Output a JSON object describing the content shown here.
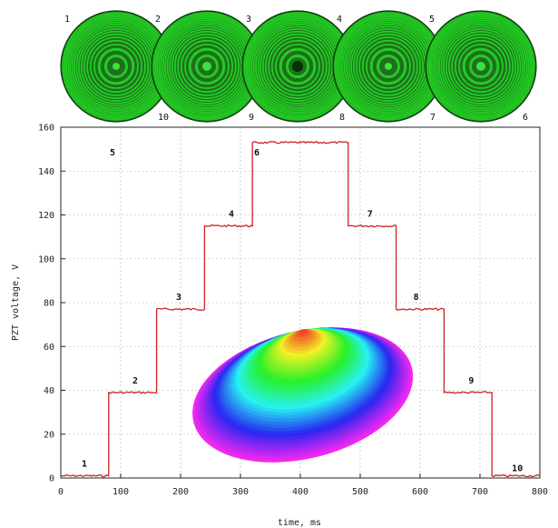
{
  "chart_data": {
    "type": "line",
    "title": "",
    "xlabel": "time, ms",
    "ylabel": "PZT voltage, V",
    "xlim": [
      0,
      800
    ],
    "ylim": [
      0,
      160
    ],
    "x_ticks": [
      "0",
      "100",
      "200",
      "300",
      "400",
      "500",
      "600",
      "700",
      "800"
    ],
    "y_ticks": [
      "0",
      "20",
      "40",
      "60",
      "80",
      "100",
      "120",
      "140",
      "160"
    ],
    "grid": true,
    "series": [
      {
        "name": "",
        "color": "#cc2222",
        "steps": [
          {
            "label": "1",
            "x_start": 0,
            "x_end": 80,
            "value": 1
          },
          {
            "label": "2",
            "x_start": 80,
            "x_end": 160,
            "value": 39
          },
          {
            "label": "3",
            "x_start": 160,
            "x_end": 240,
            "value": 77
          },
          {
            "label": "4",
            "x_start": 240,
            "x_end": 320,
            "value": 115
          },
          {
            "label": "5",
            "x_start": 320,
            "x_end": 400,
            "value": 153
          },
          {
            "label": "6",
            "x_start": 400,
            "x_end": 480,
            "value": 153
          },
          {
            "label": "7",
            "x_start": 480,
            "x_end": 560,
            "value": 115
          },
          {
            "label": "8",
            "x_start": 560,
            "x_end": 640,
            "value": 77
          },
          {
            "label": "9",
            "x_start": 640,
            "x_end": 720,
            "value": 39
          },
          {
            "label": "10",
            "x_start": 720,
            "x_end": 800,
            "value": 1
          }
        ]
      }
    ]
  },
  "interferograms": {
    "color": "#22cc22",
    "top_labels": [
      "1",
      "2",
      "3",
      "4",
      "5"
    ],
    "bottom_labels": [
      "10",
      "9",
      "8",
      "7",
      "6"
    ]
  },
  "surface_inset": {
    "type": "3d-surface",
    "colormap": "rainbow"
  }
}
